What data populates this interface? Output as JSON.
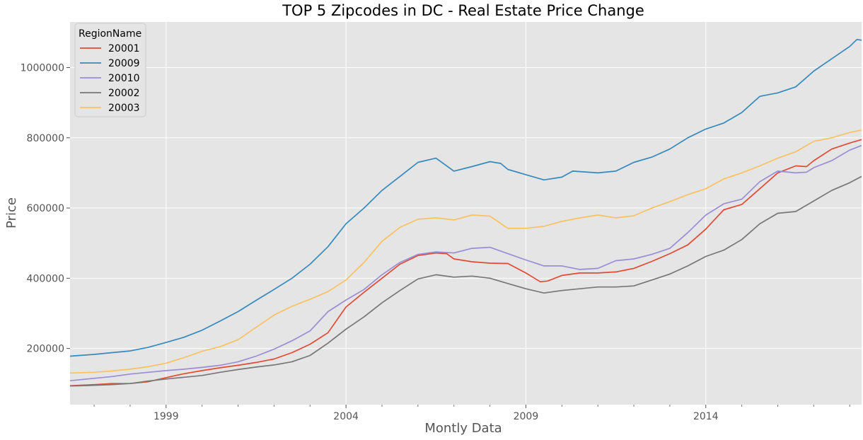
{
  "chart_data": {
    "type": "line",
    "title": "TOP 5 Zipcodes in DC - Real Estate Price Change",
    "xlabel": "Montly Data",
    "ylabel": "Price",
    "xlim": [
      1996.33,
      2018.33
    ],
    "ylim": [
      40000,
      1130000
    ],
    "grid": true,
    "legend": {
      "title": "RegionName",
      "placement": "top-left"
    },
    "x_ticks": [
      {
        "value": 1999,
        "label": "1999"
      },
      {
        "value": 2004,
        "label": "2004"
      },
      {
        "value": 2009,
        "label": "2009"
      },
      {
        "value": 2014,
        "label": "2014"
      }
    ],
    "y_ticks": [
      {
        "value": 200000,
        "label": "200000"
      },
      {
        "value": 400000,
        "label": "400000"
      },
      {
        "value": 600000,
        "label": "600000"
      },
      {
        "value": 800000,
        "label": "800000"
      },
      {
        "value": 1000000,
        "label": "1000000"
      }
    ],
    "series": [
      {
        "name": "20001",
        "color": "#E24A33",
        "points": [
          [
            1996.33,
            94000
          ],
          [
            1997,
            97000
          ],
          [
            1997.5,
            100000
          ],
          [
            1998,
            100000
          ],
          [
            1998.5,
            105000
          ],
          [
            1999,
            117000
          ],
          [
            1999.5,
            128000
          ],
          [
            2000,
            137000
          ],
          [
            2000.5,
            145000
          ],
          [
            2001,
            152000
          ],
          [
            2001.5,
            160000
          ],
          [
            2002,
            170000
          ],
          [
            2002.5,
            188000
          ],
          [
            2003,
            212000
          ],
          [
            2003.5,
            245000
          ],
          [
            2004,
            318000
          ],
          [
            2004.5,
            360000
          ],
          [
            2005,
            400000
          ],
          [
            2005.5,
            440000
          ],
          [
            2006,
            465000
          ],
          [
            2006.5,
            472000
          ],
          [
            2006.8,
            470000
          ],
          [
            2007,
            455000
          ],
          [
            2007.5,
            447000
          ],
          [
            2008,
            443000
          ],
          [
            2008.5,
            442000
          ],
          [
            2009,
            415000
          ],
          [
            2009.4,
            390000
          ],
          [
            2009.6,
            392000
          ],
          [
            2010,
            408000
          ],
          [
            2010.5,
            415000
          ],
          [
            2011,
            415000
          ],
          [
            2011.5,
            418000
          ],
          [
            2012,
            428000
          ],
          [
            2012.5,
            448000
          ],
          [
            2013,
            470000
          ],
          [
            2013.5,
            495000
          ],
          [
            2014,
            540000
          ],
          [
            2014.5,
            595000
          ],
          [
            2015,
            610000
          ],
          [
            2015.5,
            655000
          ],
          [
            2016,
            700000
          ],
          [
            2016.5,
            720000
          ],
          [
            2016.8,
            718000
          ],
          [
            2017,
            735000
          ],
          [
            2017.5,
            768000
          ],
          [
            2018,
            785000
          ],
          [
            2018.33,
            795000
          ]
        ]
      },
      {
        "name": "20009",
        "color": "#348ABD",
        "points": [
          [
            1996.33,
            178000
          ],
          [
            1997,
            183000
          ],
          [
            1997.5,
            188000
          ],
          [
            1998,
            193000
          ],
          [
            1998.5,
            203000
          ],
          [
            1999,
            217000
          ],
          [
            1999.5,
            232000
          ],
          [
            2000,
            252000
          ],
          [
            2000.5,
            278000
          ],
          [
            2001,
            305000
          ],
          [
            2001.5,
            337000
          ],
          [
            2002,
            368000
          ],
          [
            2002.5,
            400000
          ],
          [
            2003,
            440000
          ],
          [
            2003.5,
            490000
          ],
          [
            2004,
            555000
          ],
          [
            2004.5,
            600000
          ],
          [
            2005,
            650000
          ],
          [
            2005.5,
            690000
          ],
          [
            2006,
            730000
          ],
          [
            2006.5,
            742000
          ],
          [
            2007,
            705000
          ],
          [
            2007.5,
            718000
          ],
          [
            2008,
            732000
          ],
          [
            2008.3,
            727000
          ],
          [
            2008.5,
            710000
          ],
          [
            2009,
            695000
          ],
          [
            2009.5,
            680000
          ],
          [
            2010,
            688000
          ],
          [
            2010.3,
            705000
          ],
          [
            2011,
            700000
          ],
          [
            2011.5,
            705000
          ],
          [
            2012,
            730000
          ],
          [
            2012.5,
            745000
          ],
          [
            2013,
            768000
          ],
          [
            2013.5,
            800000
          ],
          [
            2014,
            825000
          ],
          [
            2014.5,
            842000
          ],
          [
            2015,
            872000
          ],
          [
            2015.5,
            918000
          ],
          [
            2016,
            928000
          ],
          [
            2016.5,
            945000
          ],
          [
            2017,
            990000
          ],
          [
            2017.5,
            1025000
          ],
          [
            2018,
            1060000
          ],
          [
            2018.2,
            1080000
          ],
          [
            2018.33,
            1078000
          ]
        ]
      },
      {
        "name": "20010",
        "color": "#988ED5",
        "points": [
          [
            1996.33,
            108000
          ],
          [
            1997,
            115000
          ],
          [
            1997.5,
            120000
          ],
          [
            1998,
            127000
          ],
          [
            1998.5,
            132000
          ],
          [
            1999,
            137000
          ],
          [
            1999.5,
            141000
          ],
          [
            2000,
            146000
          ],
          [
            2000.5,
            152000
          ],
          [
            2001,
            162000
          ],
          [
            2001.5,
            178000
          ],
          [
            2002,
            198000
          ],
          [
            2002.5,
            222000
          ],
          [
            2003,
            250000
          ],
          [
            2003.5,
            305000
          ],
          [
            2004,
            338000
          ],
          [
            2004.5,
            368000
          ],
          [
            2005,
            410000
          ],
          [
            2005.5,
            445000
          ],
          [
            2006,
            468000
          ],
          [
            2006.5,
            475000
          ],
          [
            2007,
            472000
          ],
          [
            2007.5,
            485000
          ],
          [
            2008,
            488000
          ],
          [
            2008.5,
            470000
          ],
          [
            2009,
            452000
          ],
          [
            2009.5,
            435000
          ],
          [
            2010,
            435000
          ],
          [
            2010.5,
            425000
          ],
          [
            2011,
            428000
          ],
          [
            2011.5,
            450000
          ],
          [
            2012,
            455000
          ],
          [
            2012.5,
            468000
          ],
          [
            2013,
            485000
          ],
          [
            2013.5,
            530000
          ],
          [
            2014,
            580000
          ],
          [
            2014.5,
            612000
          ],
          [
            2015,
            625000
          ],
          [
            2015.5,
            675000
          ],
          [
            2016,
            705000
          ],
          [
            2016.5,
            700000
          ],
          [
            2016.8,
            702000
          ],
          [
            2017,
            715000
          ],
          [
            2017.5,
            735000
          ],
          [
            2018,
            765000
          ],
          [
            2018.33,
            778000
          ]
        ]
      },
      {
        "name": "20002",
        "color": "#777777",
        "points": [
          [
            1996.33,
            93000
          ],
          [
            1997,
            95000
          ],
          [
            1997.5,
            97000
          ],
          [
            1998,
            100000
          ],
          [
            1998.5,
            107000
          ],
          [
            1999,
            113000
          ],
          [
            1999.5,
            118000
          ],
          [
            2000,
            123000
          ],
          [
            2000.5,
            132000
          ],
          [
            2001,
            140000
          ],
          [
            2001.5,
            147000
          ],
          [
            2002,
            153000
          ],
          [
            2002.5,
            162000
          ],
          [
            2003,
            180000
          ],
          [
            2003.5,
            215000
          ],
          [
            2004,
            255000
          ],
          [
            2004.5,
            290000
          ],
          [
            2005,
            330000
          ],
          [
            2005.5,
            365000
          ],
          [
            2006,
            398000
          ],
          [
            2006.5,
            410000
          ],
          [
            2007,
            403000
          ],
          [
            2007.5,
            406000
          ],
          [
            2008,
            400000
          ],
          [
            2008.5,
            385000
          ],
          [
            2009,
            370000
          ],
          [
            2009.5,
            358000
          ],
          [
            2010,
            365000
          ],
          [
            2010.5,
            370000
          ],
          [
            2011,
            375000
          ],
          [
            2011.5,
            375000
          ],
          [
            2012,
            378000
          ],
          [
            2012.5,
            395000
          ],
          [
            2013,
            412000
          ],
          [
            2013.5,
            435000
          ],
          [
            2014,
            462000
          ],
          [
            2014.5,
            480000
          ],
          [
            2015,
            510000
          ],
          [
            2015.5,
            555000
          ],
          [
            2016,
            585000
          ],
          [
            2016.5,
            590000
          ],
          [
            2017,
            620000
          ],
          [
            2017.5,
            650000
          ],
          [
            2018,
            672000
          ],
          [
            2018.33,
            690000
          ]
        ]
      },
      {
        "name": "20003",
        "color": "#FBC15E",
        "points": [
          [
            1996.33,
            130000
          ],
          [
            1997,
            132000
          ],
          [
            1997.5,
            136000
          ],
          [
            1998,
            141000
          ],
          [
            1998.5,
            148000
          ],
          [
            1999,
            158000
          ],
          [
            1999.5,
            174000
          ],
          [
            2000,
            192000
          ],
          [
            2000.5,
            205000
          ],
          [
            2001,
            225000
          ],
          [
            2001.5,
            260000
          ],
          [
            2002,
            295000
          ],
          [
            2002.5,
            320000
          ],
          [
            2003,
            340000
          ],
          [
            2003.5,
            362000
          ],
          [
            2004,
            395000
          ],
          [
            2004.5,
            445000
          ],
          [
            2005,
            505000
          ],
          [
            2005.5,
            545000
          ],
          [
            2006,
            568000
          ],
          [
            2006.5,
            572000
          ],
          [
            2007,
            566000
          ],
          [
            2007.5,
            580000
          ],
          [
            2008,
            577000
          ],
          [
            2008.5,
            542000
          ],
          [
            2009,
            542000
          ],
          [
            2009.5,
            548000
          ],
          [
            2010,
            562000
          ],
          [
            2010.5,
            572000
          ],
          [
            2011,
            580000
          ],
          [
            2011.5,
            572000
          ],
          [
            2012,
            578000
          ],
          [
            2012.5,
            600000
          ],
          [
            2013,
            618000
          ],
          [
            2013.5,
            638000
          ],
          [
            2014,
            655000
          ],
          [
            2014.5,
            683000
          ],
          [
            2015,
            700000
          ],
          [
            2015.5,
            720000
          ],
          [
            2016,
            742000
          ],
          [
            2016.5,
            760000
          ],
          [
            2017,
            790000
          ],
          [
            2017.5,
            800000
          ],
          [
            2018,
            815000
          ],
          [
            2018.33,
            822000
          ]
        ]
      }
    ]
  }
}
